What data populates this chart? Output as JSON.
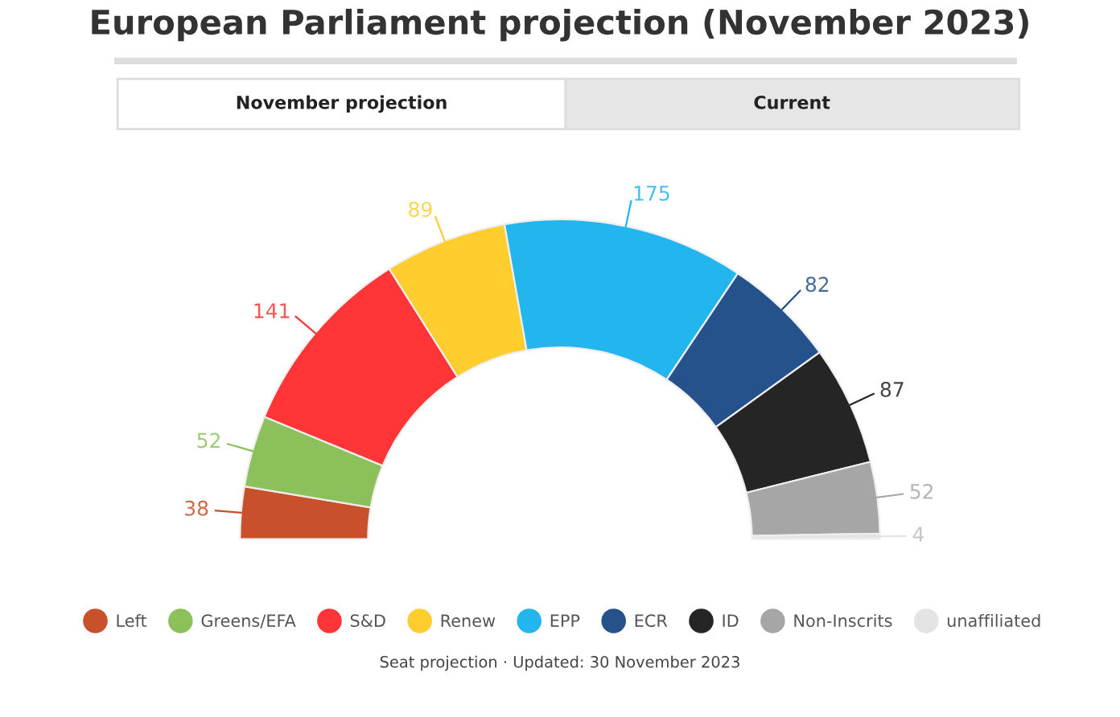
{
  "chart_data": {
    "type": "donut",
    "title": "European Parliament projection (November 2023)",
    "categories": [
      "Left",
      "Greens/EFA",
      "S&D",
      "Renew",
      "EPP",
      "ECR",
      "ID",
      "Non-Inscrits",
      "unaffiliated"
    ],
    "values": [
      38,
      52,
      141,
      89,
      175,
      82,
      87,
      52,
      4
    ],
    "colors": [
      "#c8502a",
      "#8cc05a",
      "#ff3538",
      "#ffce2e",
      "#22b5ee",
      "#26528b",
      "#252525",
      "#a6a6a6",
      "#e4e4e4"
    ],
    "data_labels": true,
    "legend": "bottom",
    "annotations": [
      "November projection",
      "Current",
      "Seat projection · Updated: 30 November 2023"
    ]
  }
}
